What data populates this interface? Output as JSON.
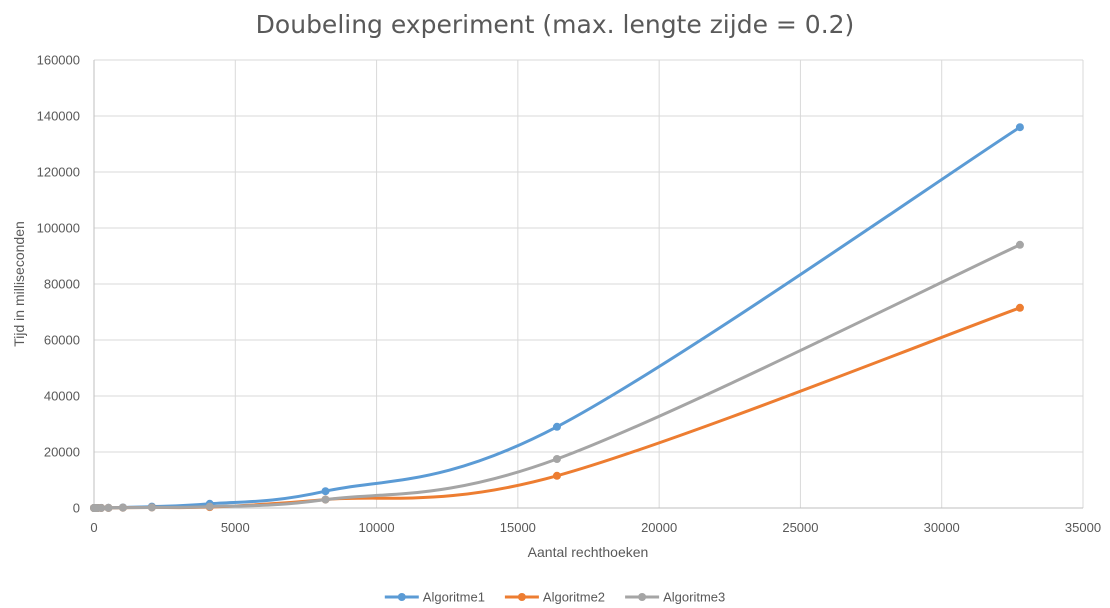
{
  "chart_data": {
    "type": "line",
    "title": "Doubeling experiment (max. lengte zijde = 0.2)",
    "xlabel": "Aantal rechthoeken",
    "ylabel": "Tijd in milliseconden",
    "xlim": [
      0,
      35000
    ],
    "ylim": [
      0,
      160000
    ],
    "xticks": [
      0,
      5000,
      10000,
      15000,
      20000,
      25000,
      30000,
      35000
    ],
    "yticks": [
      0,
      20000,
      40000,
      60000,
      80000,
      100000,
      120000,
      140000,
      160000
    ],
    "grid": true,
    "legend_position": "bottom",
    "x": [
      2,
      4,
      8,
      16,
      32,
      64,
      128,
      256,
      512,
      1024,
      2048,
      4096,
      8192,
      16384,
      32768
    ],
    "series": [
      {
        "name": "Algoritme1",
        "color": "#5b9bd5",
        "values": [
          0,
          0,
          0,
          0,
          0,
          0,
          10,
          30,
          80,
          200,
          500,
          1500,
          6000,
          29000,
          136000
        ]
      },
      {
        "name": "Algoritme2",
        "color": "#ed7d31",
        "values": [
          0,
          0,
          0,
          0,
          0,
          0,
          5,
          15,
          40,
          100,
          200,
          300,
          3000,
          11500,
          71500
        ]
      },
      {
        "name": "Algoritme3",
        "color": "#a5a5a5",
        "values": [
          0,
          0,
          0,
          0,
          0,
          0,
          5,
          15,
          40,
          100,
          200,
          500,
          3000,
          17500,
          94000
        ]
      }
    ]
  }
}
